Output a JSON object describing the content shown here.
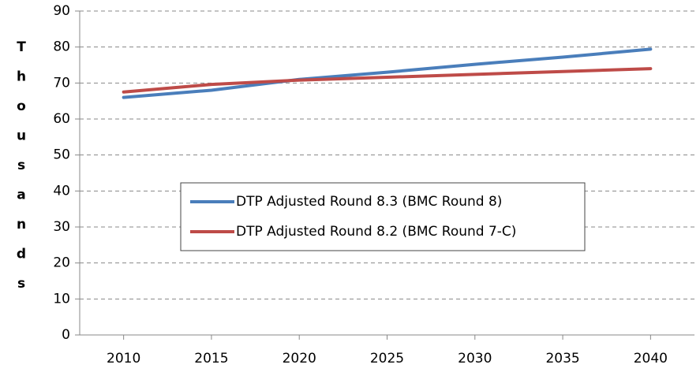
{
  "chart_data": {
    "type": "line",
    "y_label": "Thousands",
    "x": [
      2010,
      2015,
      2020,
      2025,
      2030,
      2035,
      2040
    ],
    "series": [
      {
        "name": "DTP Adjusted Round 8.3 (BMC Round 8)",
        "color": "#4a7ebb",
        "values": [
          66,
          68,
          71,
          73,
          75.2,
          77.2,
          79.4
        ]
      },
      {
        "name": "DTP Adjusted Round 8.2 (BMC Round 7-C)",
        "color": "#be4b48",
        "values": [
          67.5,
          69.6,
          70.8,
          71.6,
          72.4,
          73.2,
          74
        ]
      }
    ],
    "xlim": [
      2007.5,
      2042.5
    ],
    "xticks": [
      2010,
      2015,
      2020,
      2025,
      2030,
      2035,
      2040
    ],
    "ylim": [
      0,
      90
    ],
    "yticks": [
      0,
      10,
      20,
      30,
      40,
      50,
      60,
      70,
      80,
      90
    ],
    "grid": true,
    "legend": "center"
  }
}
